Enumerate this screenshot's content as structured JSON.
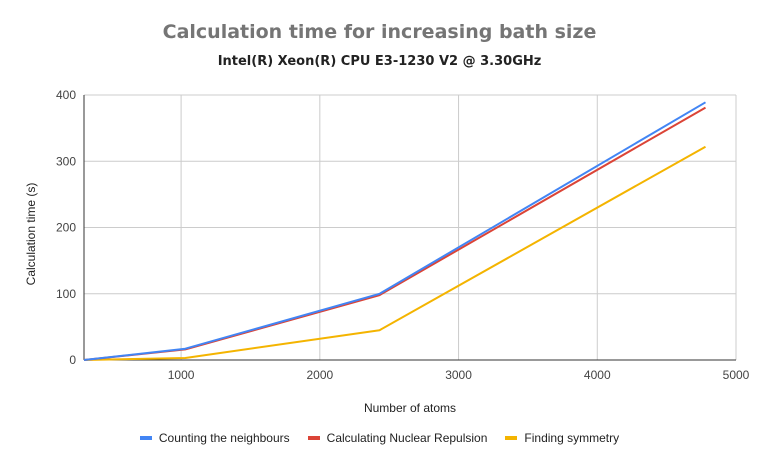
{
  "chart_data": {
    "type": "line",
    "title": "Calculation time for increasing bath size",
    "subtitle": "Intel(R) Xeon(R) CPU E3-1230 V2 @ 3.30GHz",
    "xlabel": "Number of atoms",
    "ylabel": "Calculation time (s)",
    "xlim": [
      300,
      5000
    ],
    "ylim": [
      0,
      400
    ],
    "xticks": [
      1000,
      2000,
      3000,
      4000,
      5000
    ],
    "yticks": [
      0,
      100,
      200,
      300,
      400
    ],
    "x": [
      300,
      1030,
      2430,
      4780
    ],
    "series": [
      {
        "name": "Counting the neighbours",
        "color": "#4285f4",
        "values": [
          0,
          17,
          100,
          389
        ]
      },
      {
        "name": "Calculating Nuclear Repulsion",
        "color": "#db4437",
        "values": [
          0,
          16,
          98,
          381
        ]
      },
      {
        "name": "Finding symmetry",
        "color": "#f4b400",
        "values": [
          0,
          3,
          45,
          322
        ]
      }
    ],
    "grid": true,
    "legend_position": "bottom"
  }
}
